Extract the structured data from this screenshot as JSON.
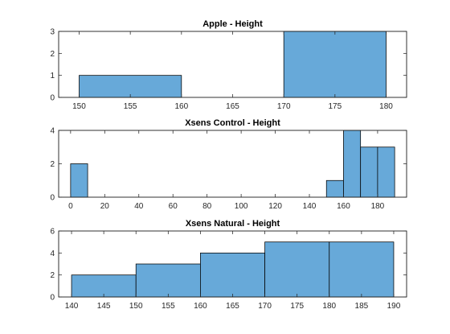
{
  "colors": {
    "bar_fill": "#67a9d9",
    "bar_edge": "#000000",
    "axis": "#262626",
    "background": "#ffffff"
  },
  "chart_data": [
    {
      "type": "bar",
      "title": "Apple - Height",
      "xlim": [
        148,
        182
      ],
      "ylim": [
        0,
        3
      ],
      "xticks": [
        150,
        155,
        160,
        165,
        170,
        175,
        180
      ],
      "yticks": [
        0,
        1,
        2,
        3
      ],
      "bins": [
        {
          "from": 150,
          "to": 160,
          "count": 1
        },
        {
          "from": 160,
          "to": 170,
          "count": 0
        },
        {
          "from": 170,
          "to": 180,
          "count": 3
        }
      ],
      "grid": false
    },
    {
      "type": "bar",
      "title": "Xsens Control - Height",
      "xlim": [
        -7,
        197
      ],
      "ylim": [
        0,
        4
      ],
      "xticks": [
        0,
        20,
        40,
        60,
        80,
        100,
        120,
        140,
        160,
        180
      ],
      "yticks": [
        0,
        2,
        4
      ],
      "bins": [
        {
          "from": 0,
          "to": 10,
          "count": 2
        },
        {
          "from": 150,
          "to": 160,
          "count": 1
        },
        {
          "from": 160,
          "to": 170,
          "count": 4
        },
        {
          "from": 170,
          "to": 180,
          "count": 3
        },
        {
          "from": 180,
          "to": 190,
          "count": 3
        }
      ],
      "grid": false
    },
    {
      "type": "bar",
      "title": "Xsens Natural - Height",
      "xlim": [
        138,
        192
      ],
      "ylim": [
        0,
        6
      ],
      "xticks": [
        140,
        145,
        150,
        155,
        160,
        165,
        170,
        175,
        180,
        185,
        190
      ],
      "yticks": [
        0,
        2,
        4,
        6
      ],
      "bins": [
        {
          "from": 140,
          "to": 150,
          "count": 2
        },
        {
          "from": 150,
          "to": 160,
          "count": 3
        },
        {
          "from": 160,
          "to": 170,
          "count": 4
        },
        {
          "from": 170,
          "to": 180,
          "count": 5
        },
        {
          "from": 180,
          "to": 190,
          "count": 5
        }
      ],
      "grid": false
    }
  ]
}
